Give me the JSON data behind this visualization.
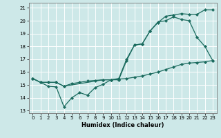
{
  "xlabel": "Humidex (Indice chaleur)",
  "xlim": [
    -0.5,
    23.5
  ],
  "ylim": [
    12.8,
    21.4
  ],
  "yticks": [
    13,
    14,
    15,
    16,
    17,
    18,
    19,
    20,
    21
  ],
  "xticks": [
    0,
    1,
    2,
    3,
    4,
    5,
    6,
    7,
    8,
    9,
    10,
    11,
    12,
    13,
    14,
    15,
    16,
    17,
    18,
    19,
    20,
    21,
    22,
    23
  ],
  "bg_color": "#cde8e8",
  "line_color": "#1a6b5e",
  "grid_color": "#ffffff",
  "line1_x": [
    0,
    1,
    2,
    3,
    4,
    5,
    6,
    7,
    8,
    9,
    10,
    11,
    12,
    13,
    14,
    15,
    16,
    17,
    18,
    19,
    20,
    21,
    22,
    23
  ],
  "line1_y": [
    15.5,
    15.2,
    14.9,
    14.85,
    13.3,
    14.0,
    14.4,
    14.2,
    14.8,
    15.05,
    15.4,
    15.4,
    16.9,
    18.1,
    18.2,
    19.2,
    19.9,
    20.0,
    20.3,
    20.1,
    20.0,
    18.7,
    18.0,
    16.9
  ],
  "line2_x": [
    0,
    1,
    2,
    3,
    4,
    5,
    6,
    7,
    8,
    9,
    10,
    11,
    12,
    13,
    14,
    15,
    16,
    17,
    18,
    19,
    20,
    21,
    22,
    23
  ],
  "line2_y": [
    15.5,
    15.2,
    15.2,
    15.2,
    14.9,
    15.1,
    15.2,
    15.3,
    15.35,
    15.4,
    15.4,
    15.45,
    15.5,
    15.6,
    15.7,
    15.85,
    16.0,
    16.2,
    16.4,
    16.6,
    16.7,
    16.75,
    16.8,
    16.9
  ],
  "line3_x": [
    0,
    1,
    2,
    3,
    4,
    9,
    10,
    11,
    12,
    13,
    14,
    15,
    16,
    17,
    18,
    19,
    20,
    21,
    22,
    23
  ],
  "line3_y": [
    15.5,
    15.2,
    15.2,
    15.2,
    14.9,
    15.4,
    15.4,
    15.5,
    17.0,
    18.1,
    18.2,
    19.2,
    19.85,
    20.35,
    20.45,
    20.55,
    20.5,
    20.5,
    20.85,
    20.85
  ]
}
